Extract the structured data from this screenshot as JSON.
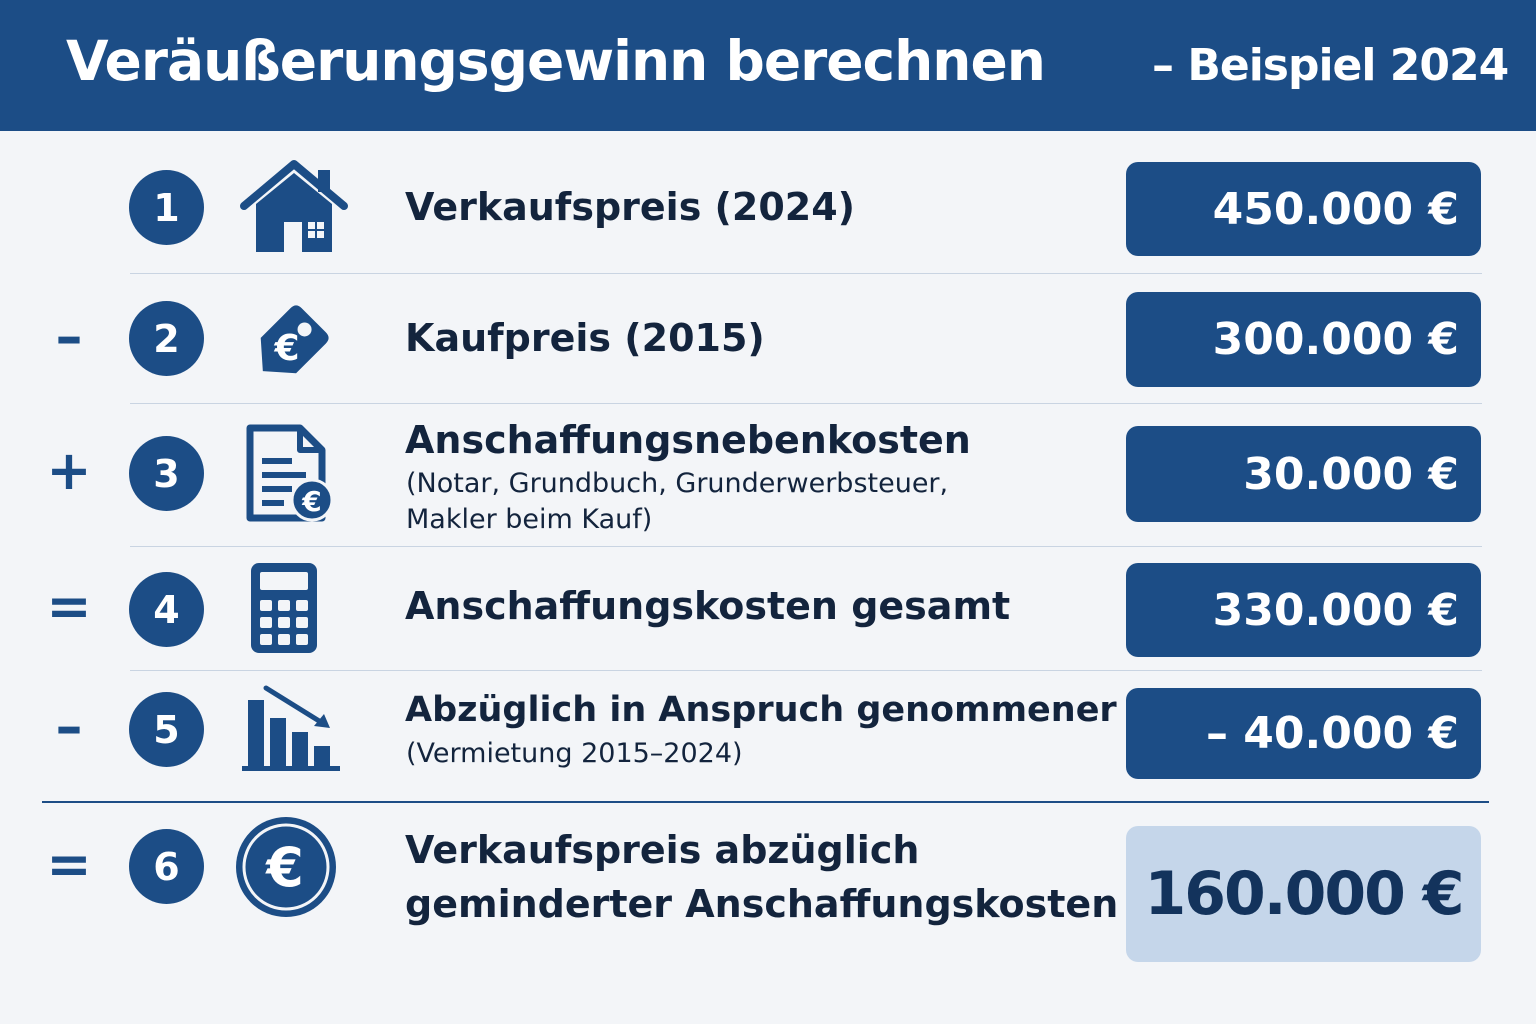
{
  "header": {
    "title": "Veräußerungsgewinn berechnen",
    "subtitle": "– Beispiel 2024"
  },
  "rows": [
    {
      "operator": "",
      "step": "1",
      "icon": "house-icon",
      "label": "Verkaufspreis (2024)",
      "sublabel": "",
      "value": "450.000 €"
    },
    {
      "operator": "–",
      "step": "2",
      "icon": "euro-price-tag-icon",
      "label": "Kaufpreis (2015)",
      "sublabel": "",
      "value": "300.000 €"
    },
    {
      "operator": "+",
      "step": "3",
      "icon": "euro-document-icon",
      "label": "Anschaffungsnebenkosten",
      "sublabel": "(Notar, Grundbuch, Grunderwerbsteuer,",
      "sublabel2": "Makler beim Kauf)",
      "value": "30.000 €"
    },
    {
      "operator": "=",
      "step": "4",
      "icon": "calculator-icon",
      "label": "Anschaffungskosten gesamt",
      "sublabel": "",
      "value": "330.000 €"
    },
    {
      "operator": "–",
      "step": "5",
      "icon": "declining-bar-chart-icon",
      "label": "Abzüglich in Anspruch genommener AfA",
      "sublabel": "(Vermietung 2015–2024)",
      "value": "– 40.000 €"
    },
    {
      "operator": "=",
      "step": "6",
      "icon": "euro-coin-icon",
      "label": "Verkaufspreis abzüglich",
      "label2": "geminderter Anschaffungskosten",
      "sublabel": "",
      "value": "160.000 €"
    }
  ],
  "colors": {
    "primary": "#1c4d86",
    "result_bg": "#c5d6ea",
    "text": "#13243d"
  }
}
